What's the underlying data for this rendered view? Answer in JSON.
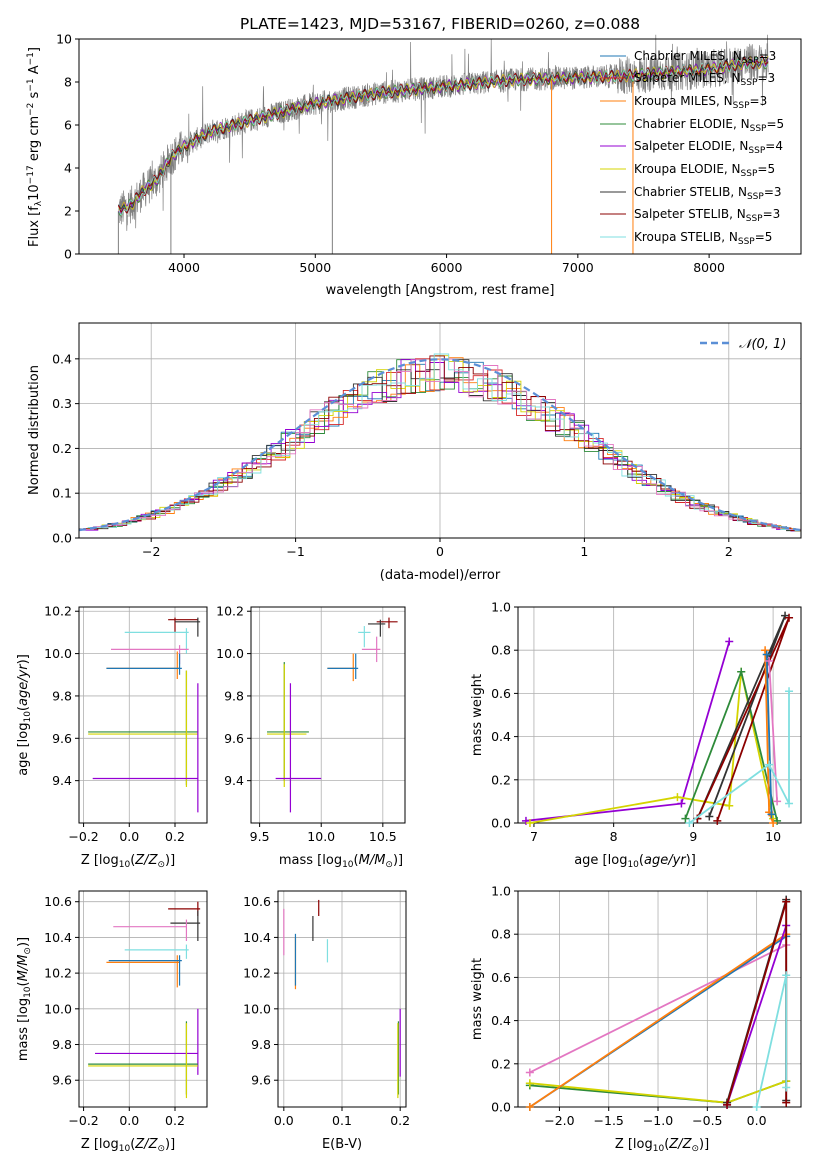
{
  "chart_data": [
    {
      "type": "line",
      "title": "PLATE=1423, MJD=53167, FIBERID=0260, z=0.088",
      "xlabel": "wavelength [Angstrom, rest frame]",
      "ylabel": "Flux [fλ10⁻¹⁷ erg cm⁻² s⁻¹ A⁻¹]",
      "xlim": [
        3200,
        8700
      ],
      "ylim": [
        0,
        10
      ],
      "xticks": [
        4000,
        5000,
        6000,
        7000,
        8000
      ],
      "yticks": [
        0,
        2,
        4,
        6,
        8,
        10
      ],
      "data_range": [
        3500,
        8450
      ],
      "continuum": {
        "x": [
          3500,
          3600,
          3700,
          3800,
          3900,
          4000,
          4200,
          4500,
          4800,
          5000,
          5500,
          6000,
          6500,
          7000,
          7400,
          8000,
          8300
        ],
        "y": [
          2.0,
          2.3,
          3.0,
          3.5,
          4.5,
          5.0,
          5.7,
          6.2,
          6.7,
          7.0,
          7.5,
          7.8,
          8.1,
          8.2,
          8.3,
          8.6,
          8.9
        ]
      },
      "legend": [
        {
          "name": "Chabrier MILES, N_SSP=3",
          "color": "#1f77b4"
        },
        {
          "name": "Salpeter MILES, N_SSP=3",
          "color": "#d62728"
        },
        {
          "name": "Kroupa MILES, N_SSP=3",
          "color": "#ff7f0e"
        },
        {
          "name": "Chabrier ELODIE, N_SSP=5",
          "color": "#2e8b3a"
        },
        {
          "name": "Salpeter ELODIE, N_SSP=4",
          "color": "#9400d3"
        },
        {
          "name": "Kroupa ELODIE, N_SSP=5",
          "color": "#d4d400"
        },
        {
          "name": "Chabrier STELIB, N_SSP=3",
          "color": "#333333"
        },
        {
          "name": "Salpeter STELIB, N_SSP=3",
          "color": "#8b0000"
        },
        {
          "name": "Kroupa STELIB, N_SSP=5",
          "color": "#7fdfe0"
        }
      ],
      "legend_location": "lower-right",
      "legend_labels": {
        "l0": "Chabrier MILES, N",
        "l1": "Salpeter MILES, N",
        "l2": "Kroupa MILES, N",
        "l3": "Chabrier ELODIE, N",
        "l4": "Salpeter ELODIE, N",
        "l5": "Kroupa ELODIE, N",
        "l6": "Chabrier STELIB, N",
        "l7": "Salpeter STELIB, N",
        "l8": "Kroupa STELIB, N",
        "sub": "SSP",
        "n0": "=3",
        "n1": "=3",
        "n2": "=3",
        "n3": "=5",
        "n4": "=4",
        "n5": "=5",
        "n6": "=3",
        "n7": "=3",
        "n8": "=5"
      }
    },
    {
      "type": "histogram",
      "xlabel": "(data-model)/error",
      "ylabel": "Normed distribution",
      "xlim": [
        -2.5,
        2.5
      ],
      "ylim": [
        0,
        0.48
      ],
      "xticks": [
        -2,
        -1,
        0,
        1,
        2
      ],
      "yticks": [
        0.0,
        0.1,
        0.2,
        0.3,
        0.4
      ],
      "bin_width": 0.1,
      "curve_label": "N(0,1)",
      "curve_color": "#5b8fd6",
      "legend_location": "top-right"
    },
    {
      "type": "scatter",
      "xlabel": "Z [log10(Z/Z☉)]",
      "ylabel": "age [log10(age/yr)]",
      "xlim": [
        -0.22,
        0.34
      ],
      "ylim": [
        9.2,
        10.22
      ],
      "xticks": [
        -0.2,
        0.0,
        0.2
      ],
      "yticks": [
        9.4,
        9.6,
        9.8,
        10.0,
        10.2
      ],
      "points": [
        {
          "x": 0.2,
          "y": 10.16,
          "xmin": 0.17,
          "xmax": 0.3,
          "ymin": 10.1,
          "ymax": 10.17,
          "c": "#8b0000"
        },
        {
          "x": 0.3,
          "y": 10.15,
          "xmin": 0.2,
          "xmax": 0.31,
          "ymin": 10.08,
          "ymax": 10.17,
          "c": "#333333"
        },
        {
          "x": 0.25,
          "y": 10.1,
          "xmin": -0.02,
          "xmax": 0.26,
          "ymin": 10.0,
          "ymax": 10.12,
          "c": "#7fdfe0"
        },
        {
          "x": 0.22,
          "y": 10.02,
          "xmin": -0.08,
          "xmax": 0.26,
          "ymin": 9.95,
          "ymax": 10.04,
          "c": "#e377c2"
        },
        {
          "x": 0.21,
          "y": 9.93,
          "xmin": -0.1,
          "xmax": 0.22,
          "ymin": 9.88,
          "ymax": 10.01,
          "c": "#ff7f0e"
        },
        {
          "x": 0.22,
          "y": 9.93,
          "xmin": -0.1,
          "xmax": 0.23,
          "ymin": 9.9,
          "ymax": 10.0,
          "c": "#1f77b4"
        },
        {
          "x": 0.25,
          "y": 9.63,
          "xmin": -0.18,
          "xmax": 0.3,
          "ymin": 9.38,
          "ymax": 9.92,
          "c": "#2e8b3a"
        },
        {
          "x": 0.25,
          "y": 9.62,
          "xmin": -0.18,
          "xmax": 0.3,
          "ymin": 9.37,
          "ymax": 9.92,
          "c": "#d4d400"
        },
        {
          "x": 0.3,
          "y": 9.41,
          "xmin": -0.16,
          "xmax": 0.3,
          "ymin": 9.25,
          "ymax": 9.86,
          "c": "#9400d3"
        }
      ]
    },
    {
      "type": "scatter",
      "xlabel": "mass [log10(M/M☉)]",
      "ylabel": "",
      "xlim": [
        9.43,
        10.68
      ],
      "ylim": [
        9.2,
        10.22
      ],
      "xticks": [
        9.5,
        10.0,
        10.5
      ],
      "yticks": [
        9.4,
        9.6,
        9.8,
        10.0,
        10.2
      ],
      "points": [
        {
          "x": 10.55,
          "y": 10.15,
          "xmin": 10.45,
          "xmax": 10.62,
          "ymin": 10.12,
          "ymax": 10.17,
          "c": "#8b0000"
        },
        {
          "x": 10.48,
          "y": 10.14,
          "xmin": 10.38,
          "xmax": 10.52,
          "ymin": 10.08,
          "ymax": 10.16,
          "c": "#333333"
        },
        {
          "x": 10.35,
          "y": 10.1,
          "xmin": 10.3,
          "xmax": 10.4,
          "ymin": 10.03,
          "ymax": 10.13,
          "c": "#7fdfe0"
        },
        {
          "x": 10.45,
          "y": 10.02,
          "xmin": 10.33,
          "xmax": 10.48,
          "ymin": 9.96,
          "ymax": 10.08,
          "c": "#e377c2"
        },
        {
          "x": 10.26,
          "y": 9.93,
          "xmin": 10.05,
          "xmax": 10.28,
          "ymin": 9.87,
          "ymax": 10.0,
          "c": "#ff7f0e"
        },
        {
          "x": 10.28,
          "y": 9.93,
          "xmin": 10.05,
          "xmax": 10.3,
          "ymin": 9.88,
          "ymax": 10.0,
          "c": "#1f77b4"
        },
        {
          "x": 9.7,
          "y": 9.63,
          "xmin": 9.56,
          "xmax": 9.9,
          "ymin": 9.4,
          "ymax": 9.96,
          "c": "#2e8b3a"
        },
        {
          "x": 9.7,
          "y": 9.62,
          "xmin": 9.56,
          "xmax": 9.88,
          "ymin": 9.37,
          "ymax": 9.95,
          "c": "#d4d400"
        },
        {
          "x": 9.75,
          "y": 9.41,
          "xmin": 9.63,
          "xmax": 10.0,
          "ymin": 9.25,
          "ymax": 9.86,
          "c": "#9400d3"
        }
      ]
    },
    {
      "type": "line",
      "xlabel": "age  [log10(age/yr)]",
      "ylabel": "mass weight",
      "xlim": [
        6.8,
        10.35
      ],
      "ylim": [
        0,
        1.0
      ],
      "xticks": [
        7,
        8,
        9,
        10
      ],
      "yticks": [
        0.0,
        0.2,
        0.4,
        0.6,
        0.8,
        1.0
      ],
      "series": [
        {
          "c": "#9400d3",
          "x": [
            6.9,
            8.85,
            9.45
          ],
          "y": [
            0.01,
            0.09,
            0.84
          ]
        },
        {
          "c": "#d4d400",
          "x": [
            6.95,
            8.8,
            9.45,
            9.6,
            10.0
          ],
          "y": [
            0.0,
            0.12,
            0.08,
            0.7,
            0.02
          ]
        },
        {
          "c": "#2e8b3a",
          "x": [
            8.9,
            9.6,
            10.05
          ],
          "y": [
            0.02,
            0.7,
            0.01
          ]
        },
        {
          "c": "#333333",
          "x": [
            9.05,
            10.15,
            9.2
          ],
          "y": [
            0.02,
            0.96,
            0.03
          ]
        },
        {
          "c": "#8b0000",
          "x": [
            9.3,
            10.2,
            9.05
          ],
          "y": [
            0.01,
            0.95,
            0.02
          ]
        },
        {
          "c": "#ff7f0e",
          "x": [
            9.9,
            9.95,
            10.0
          ],
          "y": [
            0.8,
            0.05,
            0.0
          ]
        },
        {
          "c": "#1f77b4",
          "x": [
            9.92,
            9.98
          ],
          "y": [
            0.78,
            0.04
          ]
        },
        {
          "c": "#e377c2",
          "x": [
            9.95,
            10.05
          ],
          "y": [
            0.75,
            0.1
          ]
        },
        {
          "c": "#7fdfe0",
          "x": [
            8.95,
            9.95,
            10.2,
            10.2
          ],
          "y": [
            0.0,
            0.27,
            0.09,
            0.61
          ]
        }
      ]
    },
    {
      "type": "scatter",
      "xlabel": "Z [log10(Z/Z☉)]",
      "ylabel": "mass [log10(M/M☉)]",
      "xlim": [
        -0.22,
        0.34
      ],
      "ylim": [
        9.45,
        10.66
      ],
      "xticks": [
        -0.2,
        0.0,
        0.2
      ],
      "yticks": [
        9.6,
        9.8,
        10.0,
        10.2,
        10.4,
        10.6
      ],
      "points": [
        {
          "x": 0.3,
          "y": 10.56,
          "xmin": 0.17,
          "xmax": 0.31,
          "ymin": 10.52,
          "ymax": 10.6,
          "c": "#8b0000"
        },
        {
          "x": 0.3,
          "y": 10.48,
          "xmin": 0.18,
          "xmax": 0.31,
          "ymin": 10.38,
          "ymax": 10.55,
          "c": "#333333"
        },
        {
          "x": 0.25,
          "y": 10.46,
          "xmin": -0.07,
          "xmax": 0.25,
          "ymin": 10.38,
          "ymax": 10.5,
          "c": "#e377c2"
        },
        {
          "x": 0.25,
          "y": 10.33,
          "xmin": -0.02,
          "xmax": 0.26,
          "ymin": 10.28,
          "ymax": 10.36,
          "c": "#7fdfe0"
        },
        {
          "x": 0.21,
          "y": 10.26,
          "xmin": -0.1,
          "xmax": 0.22,
          "ymin": 10.12,
          "ymax": 10.3,
          "c": "#ff7f0e"
        },
        {
          "x": 0.22,
          "y": 10.27,
          "xmin": -0.09,
          "xmax": 0.23,
          "ymin": 10.13,
          "ymax": 10.3,
          "c": "#1f77b4"
        },
        {
          "x": 0.3,
          "y": 9.75,
          "xmin": -0.15,
          "xmax": 0.3,
          "ymin": 9.63,
          "ymax": 10.0,
          "c": "#9400d3"
        },
        {
          "x": 0.25,
          "y": 9.69,
          "xmin": -0.18,
          "xmax": 0.3,
          "ymin": 9.52,
          "ymax": 9.93,
          "c": "#2e8b3a"
        },
        {
          "x": 0.25,
          "y": 9.68,
          "xmin": -0.18,
          "xmax": 0.3,
          "ymin": 9.5,
          "ymax": 9.92,
          "c": "#d4d400"
        }
      ]
    },
    {
      "type": "scatter",
      "xlabel": "E(B-V)",
      "ylabel": "",
      "xlim": [
        -0.01,
        0.21
      ],
      "ylim": [
        9.45,
        10.66
      ],
      "xticks": [
        0.0,
        0.1,
        0.2
      ],
      "yticks": [
        9.6,
        9.8,
        10.0,
        10.2,
        10.4,
        10.6
      ],
      "points": [
        {
          "x": 0.06,
          "y": 10.56,
          "ymin": 10.52,
          "ymax": 10.61,
          "c": "#8b0000"
        },
        {
          "x": 0.05,
          "y": 10.48,
          "ymin": 10.38,
          "ymax": 10.52,
          "c": "#333333"
        },
        {
          "x": 0.0,
          "y": 10.46,
          "ymin": 10.3,
          "ymax": 10.56,
          "c": "#e377c2"
        },
        {
          "x": 0.075,
          "y": 10.33,
          "ymin": 10.26,
          "ymax": 10.39,
          "c": "#7fdfe0"
        },
        {
          "x": 0.02,
          "y": 10.26,
          "ymin": 10.11,
          "ymax": 10.4,
          "c": "#ff7f0e"
        },
        {
          "x": 0.02,
          "y": 10.27,
          "ymin": 10.13,
          "ymax": 10.42,
          "c": "#1f77b4"
        },
        {
          "x": 0.2,
          "y": 9.75,
          "ymin": 9.62,
          "ymax": 10.0,
          "c": "#9400d3"
        },
        {
          "x": 0.197,
          "y": 9.69,
          "ymin": 9.52,
          "ymax": 9.93,
          "c": "#2e8b3a"
        },
        {
          "x": 0.196,
          "y": 9.68,
          "ymin": 9.5,
          "ymax": 9.92,
          "c": "#d4d400"
        }
      ]
    },
    {
      "type": "line",
      "xlabel": "Z [log10(Z/Z☉)]",
      "ylabel": "mass weight",
      "xlim": [
        -2.42,
        0.45
      ],
      "ylim": [
        0,
        1.0
      ],
      "xticks": [
        -2.0,
        -1.5,
        -1.0,
        -0.5,
        0.0
      ],
      "yticks": [
        0.0,
        0.2,
        0.4,
        0.6,
        0.8,
        1.0
      ],
      "series": [
        {
          "c": "#2e8b3a",
          "x": [
            -2.3,
            -0.3,
            0.3
          ],
          "y": [
            0.1,
            0.02,
            0.12
          ]
        },
        {
          "c": "#d4d400",
          "x": [
            -2.3,
            -0.3,
            0.3
          ],
          "y": [
            0.11,
            0.02,
            0.12
          ]
        },
        {
          "c": "#e377c2",
          "x": [
            -2.3,
            0.3
          ],
          "y": [
            0.16,
            0.75
          ]
        },
        {
          "c": "#1f77b4",
          "x": [
            -2.3,
            0.3
          ],
          "y": [
            0.0,
            0.79
          ]
        },
        {
          "c": "#ff7f0e",
          "x": [
            -2.3,
            0.3
          ],
          "y": [
            0.0,
            0.8
          ]
        },
        {
          "c": "#9400d3",
          "x": [
            -0.3,
            0.3
          ],
          "y": [
            0.01,
            0.84
          ]
        },
        {
          "c": "#333333",
          "x": [
            -0.3,
            0.3,
            0.3
          ],
          "y": [
            0.02,
            0.96,
            0.03
          ]
        },
        {
          "c": "#8b0000",
          "x": [
            -0.3,
            0.3,
            0.3
          ],
          "y": [
            0.01,
            0.95,
            0.02
          ]
        },
        {
          "c": "#7fdfe0",
          "x": [
            0.0,
            0.3,
            0.3
          ],
          "y": [
            0.0,
            0.61,
            0.09
          ]
        }
      ]
    }
  ]
}
